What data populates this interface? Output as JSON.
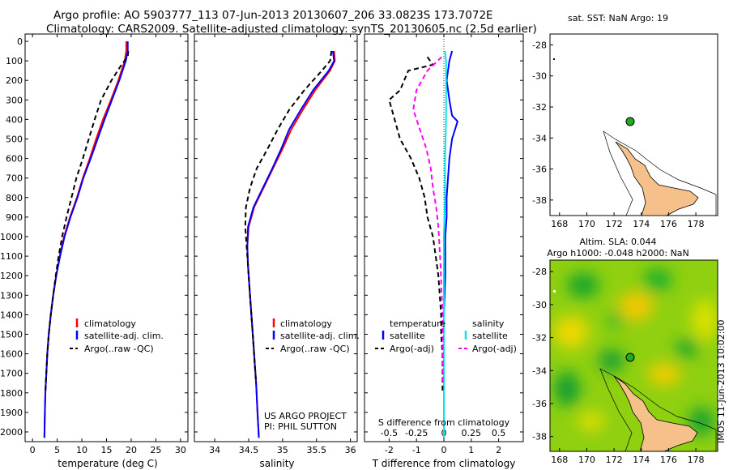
{
  "header": {
    "line1": "Argo profile: AO 5903777_113 07-Jun-2013 20130607_206 33.0823S 173.7072E",
    "line2": "Climatology: CARS2009. Satellite-adjusted climatology: synTS_20130605.nc (2.5d earlier)"
  },
  "colors": {
    "climatology": "#ff0000",
    "satellite": "#0000ff",
    "argo": "#000000",
    "satellite_salinity": "#00e5ee",
    "argo_salinity_diff": "#ff00ff",
    "land": "#f5c08a",
    "float_marker": "#22aa22"
  },
  "chart_data": [
    {
      "type": "line",
      "name": "temperature-profile",
      "xlabel": "temperature (deg C)",
      "ylabel": "",
      "xlim": [
        -1.5,
        31.5
      ],
      "ylim": [
        2100,
        0
      ],
      "xticks": [
        0,
        5,
        10,
        15,
        20,
        25,
        30
      ],
      "yticks": [
        0,
        100,
        200,
        300,
        400,
        500,
        600,
        700,
        800,
        900,
        1000,
        1100,
        1200,
        1300,
        1400,
        1500,
        1600,
        1700,
        1800,
        1900,
        2000
      ],
      "legend": [
        "climatology",
        "satellite-adj. clim.",
        "Argo(..raw -QC)"
      ],
      "series": [
        {
          "name": "climatology",
          "color": "#ff0000",
          "dash": "solid",
          "x": [
            19.0,
            19.0,
            18.7,
            17.4,
            15.9,
            14.3,
            12.9,
            11.6,
            10.2,
            9.0,
            7.6,
            6.4,
            5.5,
            4.8,
            4.2,
            3.7,
            3.3,
            3.0,
            2.8,
            2.6,
            2.5,
            2.4
          ],
          "y": [
            0,
            50,
            100,
            200,
            300,
            400,
            500,
            600,
            700,
            800,
            900,
            1000,
            1100,
            1200,
            1300,
            1400,
            1500,
            1600,
            1700,
            1800,
            1900,
            2030
          ]
        },
        {
          "name": "satellite-adj. clim.",
          "color": "#0000ff",
          "dash": "solid",
          "x": [
            19.3,
            19.3,
            18.9,
            17.6,
            16.1,
            14.6,
            13.2,
            11.8,
            10.3,
            9.1,
            7.7,
            6.5,
            5.6,
            4.8,
            4.2,
            3.7,
            3.3,
            3.0,
            2.8,
            2.6,
            2.5,
            2.4
          ],
          "y": [
            0,
            50,
            100,
            200,
            300,
            400,
            500,
            600,
            700,
            800,
            900,
            1000,
            1100,
            1200,
            1300,
            1400,
            1500,
            1600,
            1700,
            1800,
            1900,
            2030
          ]
        },
        {
          "name": "Argo(..raw -QC)",
          "color": "#000000",
          "dash": "dashed",
          "x": [
            19.4,
            19.3,
            18.3,
            16.0,
            13.9,
            12.6,
            11.4,
            10.2,
            8.9,
            7.9,
            6.9,
            6.0,
            5.3,
            4.7,
            4.2,
            3.7,
            3.3,
            3.0,
            2.8,
            2.6
          ],
          "y": [
            50,
            80,
            110,
            200,
            300,
            400,
            500,
            600,
            700,
            800,
            900,
            1000,
            1100,
            1200,
            1300,
            1400,
            1500,
            1600,
            1700,
            1800
          ]
        }
      ]
    },
    {
      "type": "line",
      "name": "salinity-profile",
      "xlabel": "salinity",
      "xlim": [
        33.7,
        36.1
      ],
      "ylim": [
        2100,
        0
      ],
      "xticks": [
        34,
        34.5,
        35,
        35.5,
        36
      ],
      "legend": [
        "climatology",
        "satellite-adj. clim.",
        "Argo(..raw -QC)"
      ],
      "annotations": [
        "US ARGO PROJECT",
        "PI: PHIL SUTTON"
      ],
      "series": [
        {
          "name": "climatology",
          "color": "#ff0000",
          "dash": "solid",
          "x": [
            35.76,
            35.77,
            35.7,
            35.48,
            35.3,
            35.13,
            35.0,
            34.86,
            34.72,
            34.58,
            34.5,
            34.48,
            34.49,
            34.51,
            34.53,
            34.55,
            34.57,
            34.59,
            34.61,
            34.63,
            34.65
          ],
          "y": [
            50,
            100,
            150,
            250,
            350,
            450,
            550,
            650,
            750,
            850,
            950,
            1050,
            1150,
            1250,
            1350,
            1450,
            1550,
            1650,
            1750,
            1900,
            2030
          ]
        },
        {
          "name": "satellite-adj. clim.",
          "color": "#0000ff",
          "dash": "solid",
          "x": [
            35.74,
            35.76,
            35.68,
            35.45,
            35.27,
            35.1,
            34.98,
            34.85,
            34.71,
            34.57,
            34.49,
            34.48,
            34.49,
            34.51,
            34.53,
            34.55,
            34.57,
            34.59,
            34.61,
            34.63,
            34.65
          ],
          "y": [
            50,
            100,
            150,
            250,
            350,
            450,
            550,
            650,
            750,
            850,
            950,
            1050,
            1150,
            1250,
            1350,
            1450,
            1550,
            1650,
            1750,
            1900,
            2030
          ]
        },
        {
          "name": "Argo(..raw -QC)",
          "color": "#000000",
          "dash": "dashed",
          "x": [
            35.72,
            35.7,
            35.58,
            35.32,
            35.1,
            34.93,
            34.78,
            34.62,
            34.52,
            34.46,
            34.45,
            34.47,
            34.49,
            34.51,
            34.53,
            34.55,
            34.57,
            34.59,
            34.61
          ],
          "y": [
            50,
            100,
            150,
            250,
            350,
            450,
            550,
            650,
            750,
            850,
            950,
            1050,
            1150,
            1250,
            1350,
            1450,
            1550,
            1650,
            1750
          ]
        }
      ]
    },
    {
      "type": "line",
      "name": "difference-profile",
      "xlabel": "T difference from climatology",
      "xlabel2": "S difference from climatology",
      "xlim": [
        -2.9,
        2.9
      ],
      "xlim_salinity": [
        -0.725,
        0.725
      ],
      "ylim": [
        2100,
        0
      ],
      "xticks": [
        -2,
        -1,
        0,
        1,
        2
      ],
      "xticks_salinity": [
        -0.5,
        -0.25,
        0,
        0.25,
        0.5
      ],
      "legend": {
        "temperature_heading": "temperature",
        "salinity_heading": "salinity",
        "temperature_items": [
          "satellite",
          "Argo(-adj)"
        ],
        "salinity_items": [
          "satellite",
          "Argo(-adj)"
        ]
      },
      "series": [
        {
          "name": "T satellite",
          "color": "#0000ff",
          "dash": "solid",
          "x": [
            0.3,
            0.2,
            0.1,
            0.2,
            0.3,
            0.5,
            0.3,
            0.2,
            0.15,
            0.1,
            0.1,
            0.05,
            0.05,
            0.0,
            0.0,
            0.0,
            0.0,
            0.0,
            0.0,
            0.0
          ],
          "y": [
            50,
            100,
            200,
            300,
            380,
            410,
            500,
            600,
            700,
            800,
            900,
            1000,
            1200,
            1400,
            1500,
            1600,
            1700,
            1800,
            1900,
            2030
          ]
        },
        {
          "name": "S satellite",
          "color": "#00e5ee",
          "dash": "solid",
          "x": [
            0.01,
            0.02,
            0.02,
            0.02,
            0.01,
            0.01,
            0.0,
            0.0,
            0.0,
            0.0,
            0.0,
            0.0,
            0.0
          ],
          "y": [
            50,
            100,
            200,
            400,
            600,
            800,
            1000,
            1200,
            1400,
            1600,
            1800,
            1900,
            2030
          ]
        },
        {
          "name": "T Argo(-adj)",
          "color": "#000000",
          "dash": "dashed",
          "x": [
            -0.6,
            -0.4,
            -1.3,
            -1.6,
            -2.0,
            -1.8,
            -1.6,
            -1.2,
            -0.9,
            -0.7,
            -0.6,
            -0.4,
            -0.3,
            -0.2,
            -0.15,
            -0.1,
            -0.1,
            -0.05,
            -0.05,
            -0.05
          ],
          "y": [
            80,
            120,
            150,
            250,
            300,
            400,
            500,
            600,
            700,
            800,
            900,
            1000,
            1100,
            1200,
            1300,
            1400,
            1500,
            1600,
            1700,
            1800
          ]
        },
        {
          "name": "S Argo(-adj)",
          "color": "#ff00ff",
          "dash": "dashed",
          "x": [
            -0.02,
            -0.15,
            -0.25,
            -0.28,
            -0.22,
            -0.16,
            -0.12,
            -0.1,
            -0.07,
            -0.05,
            -0.04,
            -0.03,
            -0.02,
            -0.01,
            -0.01,
            -0.01,
            -0.01
          ],
          "y": [
            80,
            150,
            250,
            350,
            450,
            550,
            650,
            750,
            850,
            950,
            1050,
            1150,
            1300,
            1400,
            1500,
            1600,
            1750
          ]
        }
      ]
    },
    {
      "type": "map",
      "name": "sst-map",
      "title": "sat. SST: NaN Argo: 19",
      "xticks": [
        168,
        170,
        172,
        174,
        176,
        178
      ],
      "yticks": [
        -28,
        -30,
        -32,
        -34,
        -36,
        -38
      ],
      "float_position": {
        "lon": 173.7072,
        "lat": -33.0823
      }
    },
    {
      "type": "heatmap",
      "name": "sla-map",
      "title_line1": "Altim. SLA: 0.044",
      "title_line2": "Argo h1000: -0.048 h2000: NaN",
      "side_label": "IMOS 11-Jun-2013 10:02:00",
      "xticks": [
        168,
        170,
        172,
        174,
        176,
        178
      ],
      "yticks": [
        -28,
        -30,
        -32,
        -34,
        -36,
        -38
      ],
      "float_position": {
        "lon": 173.7072,
        "lat": -33.0823
      }
    }
  ]
}
